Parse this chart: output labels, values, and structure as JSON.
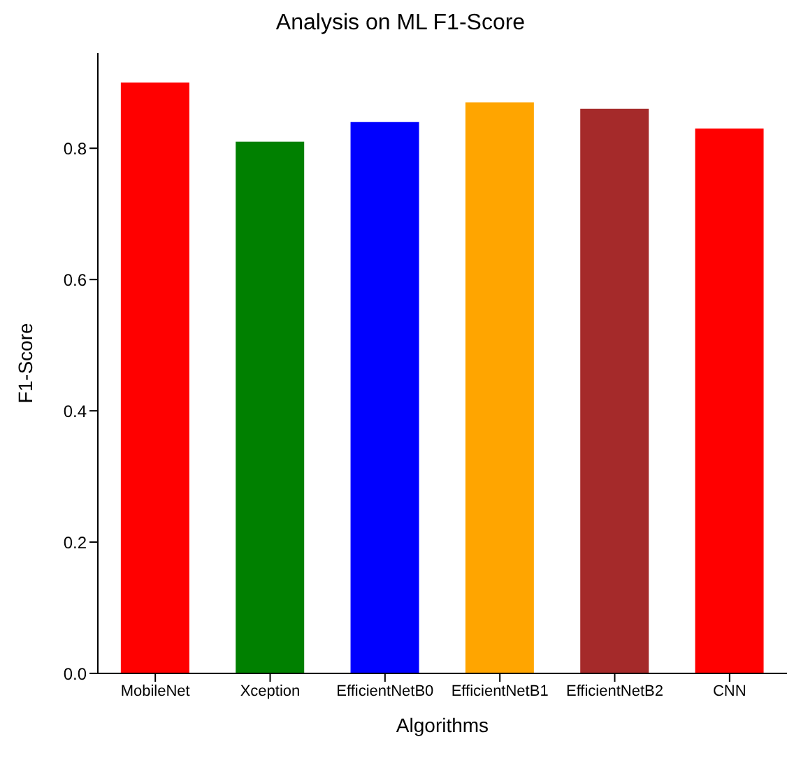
{
  "chart_data": {
    "type": "bar",
    "title": "Analysis on ML F1-Score",
    "xlabel": "Algorithms",
    "ylabel": "F1-Score",
    "categories": [
      "MobileNet",
      "Xception",
      "EfficientNetB0",
      "EfficientNetB1",
      "EfficientNetB2",
      "CNN"
    ],
    "values": [
      0.9,
      0.81,
      0.84,
      0.87,
      0.86,
      0.83
    ],
    "colors": [
      "#ff0000",
      "#008000",
      "#0000ff",
      "#ffa500",
      "#a52a2a",
      "#ff0000"
    ],
    "ylim": [
      0,
      0.945
    ],
    "yticks": [
      {
        "value": 0,
        "label": "0.0"
      },
      {
        "value": 0.2,
        "label": "0.2"
      },
      {
        "value": 0.4,
        "label": "0.4"
      },
      {
        "value": 0.6,
        "label": "0.6"
      },
      {
        "value": 0.8,
        "label": "0.8"
      }
    ],
    "grid": false
  }
}
